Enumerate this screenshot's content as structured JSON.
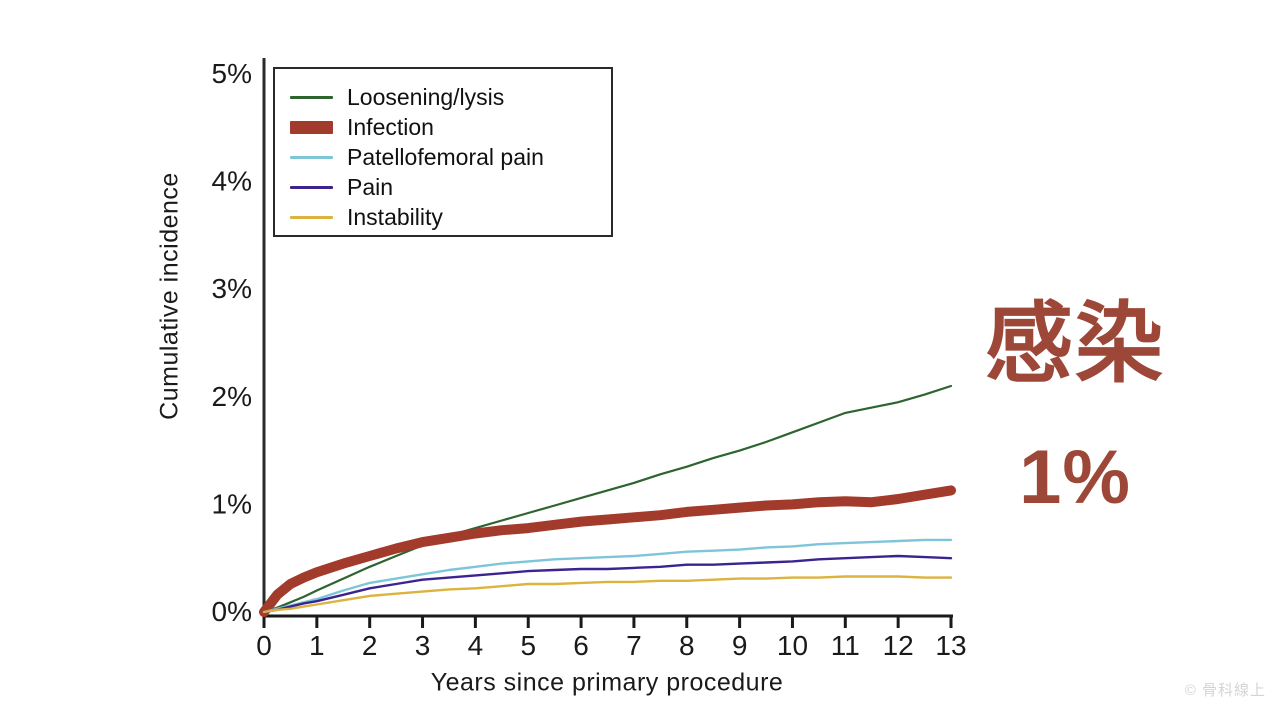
{
  "annotation": {
    "title": "感染",
    "value": "1%",
    "color": "#9c4737"
  },
  "watermark": "© 骨科線上",
  "chart_data": {
    "type": "line",
    "title": "",
    "xlabel": "Years since primary procedure",
    "ylabel": "Cumulative incidence",
    "xlim": [
      0,
      13
    ],
    "ylim": [
      0,
      5
    ],
    "grid": false,
    "legend_position": "upper-left-inside",
    "x_ticks": [
      "0",
      "1",
      "2",
      "3",
      "4",
      "5",
      "6",
      "7",
      "8",
      "9",
      "10",
      "11",
      "12",
      "13"
    ],
    "y_ticks": [
      "0%",
      "1%",
      "2%",
      "3%",
      "4%",
      "5%"
    ],
    "y_tick_values": [
      0,
      1,
      2,
      3,
      4,
      5
    ],
    "x": [
      0,
      0.25,
      0.5,
      0.75,
      1,
      1.5,
      2,
      2.5,
      3,
      3.5,
      4,
      4.5,
      5,
      5.5,
      6,
      6.5,
      7,
      7.5,
      8,
      8.5,
      9,
      9.5,
      10,
      10.5,
      11,
      11.5,
      12,
      12.5,
      13
    ],
    "series": [
      {
        "name": "Loosening/lysis",
        "color": "#2e6430",
        "width": 2.2,
        "values": [
          0,
          0.04,
          0.09,
          0.14,
          0.2,
          0.31,
          0.42,
          0.52,
          0.62,
          0.71,
          0.78,
          0.85,
          0.92,
          0.99,
          1.06,
          1.13,
          1.2,
          1.28,
          1.35,
          1.43,
          1.5,
          1.58,
          1.67,
          1.76,
          1.85,
          1.9,
          1.95,
          2.02,
          2.1
        ]
      },
      {
        "name": "Infection",
        "color": "#a23b2b",
        "width": 10,
        "values": [
          0,
          0.16,
          0.26,
          0.32,
          0.37,
          0.45,
          0.52,
          0.59,
          0.65,
          0.69,
          0.73,
          0.76,
          0.78,
          0.81,
          0.84,
          0.86,
          0.88,
          0.9,
          0.93,
          0.95,
          0.97,
          0.99,
          1.0,
          1.02,
          1.03,
          1.02,
          1.05,
          1.09,
          1.13
        ]
      },
      {
        "name": "Patellofemoral pain",
        "color": "#7ec5da",
        "width": 2.4,
        "values": [
          0,
          0.03,
          0.06,
          0.09,
          0.12,
          0.2,
          0.27,
          0.31,
          0.35,
          0.39,
          0.42,
          0.45,
          0.47,
          0.49,
          0.5,
          0.51,
          0.52,
          0.54,
          0.56,
          0.57,
          0.58,
          0.6,
          0.61,
          0.63,
          0.64,
          0.65,
          0.66,
          0.67,
          0.67
        ]
      },
      {
        "name": "Pain",
        "color": "#3b2490",
        "width": 2.4,
        "values": [
          0,
          0.02,
          0.05,
          0.08,
          0.1,
          0.16,
          0.22,
          0.26,
          0.3,
          0.32,
          0.34,
          0.36,
          0.38,
          0.39,
          0.4,
          0.4,
          0.41,
          0.42,
          0.44,
          0.44,
          0.45,
          0.46,
          0.47,
          0.49,
          0.5,
          0.51,
          0.52,
          0.51,
          0.5
        ]
      },
      {
        "name": "Instability",
        "color": "#dcb33e",
        "width": 2.4,
        "values": [
          0,
          0.02,
          0.03,
          0.05,
          0.07,
          0.11,
          0.15,
          0.17,
          0.19,
          0.21,
          0.22,
          0.24,
          0.26,
          0.26,
          0.27,
          0.28,
          0.28,
          0.29,
          0.29,
          0.3,
          0.31,
          0.31,
          0.32,
          0.32,
          0.33,
          0.33,
          0.33,
          0.32,
          0.32
        ]
      }
    ]
  }
}
